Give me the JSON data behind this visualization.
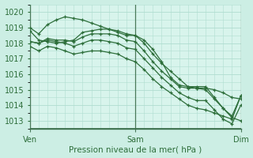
{
  "bg_outer": "#cceee4",
  "bg_plot": "#d8f4ec",
  "grid_color": "#b0ddd0",
  "line_color": "#2d6e3a",
  "vline_color": "#4a7a5a",
  "border_color": "#3a6e4a",
  "marker": "+",
  "xlabel": "Pression niveau de la mer( hPa )",
  "xlim": [
    0,
    48
  ],
  "ylim": [
    1012.5,
    1020.5
  ],
  "yticks": [
    1013,
    1014,
    1015,
    1016,
    1017,
    1018,
    1019,
    1020
  ],
  "xtick_positions": [
    0,
    24,
    48
  ],
  "xtick_labels": [
    "Ven",
    "Sam",
    "Dim"
  ],
  "series": [
    [
      0,
      1018.8,
      2,
      1018.2,
      4,
      1018.1,
      6,
      1018.0,
      8,
      1018.1,
      10,
      1018.2,
      12,
      1018.7,
      14,
      1018.8,
      16,
      1018.9,
      18,
      1018.9,
      20,
      1018.8,
      22,
      1018.6,
      24,
      1018.5,
      26,
      1018.0,
      28,
      1017.3,
      30,
      1016.7,
      32,
      1016.2,
      34,
      1015.7,
      36,
      1015.2,
      38,
      1015.1,
      40,
      1015.1,
      42,
      1015.0,
      44,
      1014.8,
      46,
      1014.5,
      48,
      1014.4
    ],
    [
      0,
      1019.0,
      2,
      1018.6,
      4,
      1019.2,
      6,
      1019.5,
      8,
      1019.7,
      10,
      1019.6,
      12,
      1019.5,
      14,
      1019.3,
      16,
      1019.1,
      18,
      1018.9,
      20,
      1018.7,
      22,
      1018.5,
      24,
      1018.5,
      26,
      1018.2,
      28,
      1017.6,
      30,
      1016.8,
      32,
      1015.8,
      34,
      1015.3,
      36,
      1015.2,
      38,
      1015.2,
      40,
      1015.2,
      42,
      1014.5,
      44,
      1013.8,
      46,
      1013.2,
      48,
      1013.0
    ],
    [
      0,
      1018.1,
      2,
      1018.0,
      4,
      1018.3,
      6,
      1018.2,
      8,
      1018.2,
      10,
      1018.1,
      12,
      1018.4,
      14,
      1018.6,
      16,
      1018.6,
      18,
      1018.6,
      20,
      1018.5,
      22,
      1018.2,
      24,
      1018.1,
      26,
      1017.5,
      28,
      1016.8,
      30,
      1016.2,
      32,
      1015.7,
      34,
      1015.2,
      36,
      1015.1,
      38,
      1015.1,
      40,
      1015.0,
      42,
      1014.4,
      44,
      1013.8,
      46,
      1013.3,
      48,
      1014.6
    ],
    [
      0,
      1017.8,
      2,
      1017.5,
      4,
      1017.8,
      6,
      1017.7,
      8,
      1017.5,
      10,
      1017.3,
      12,
      1017.4,
      14,
      1017.5,
      16,
      1017.5,
      18,
      1017.4,
      20,
      1017.3,
      22,
      1017.0,
      24,
      1016.8,
      26,
      1016.3,
      28,
      1015.7,
      30,
      1015.2,
      32,
      1014.8,
      34,
      1014.4,
      36,
      1014.0,
      38,
      1013.8,
      40,
      1013.7,
      42,
      1013.5,
      44,
      1013.3,
      46,
      1013.1,
      48,
      1014.6
    ],
    [
      0,
      1018.1,
      2,
      1018.0,
      4,
      1018.2,
      6,
      1018.1,
      8,
      1018.0,
      10,
      1017.8,
      12,
      1018.0,
      14,
      1018.2,
      16,
      1018.2,
      18,
      1018.1,
      20,
      1018.0,
      22,
      1017.7,
      24,
      1017.6,
      26,
      1017.0,
      28,
      1016.4,
      30,
      1015.8,
      32,
      1015.3,
      34,
      1014.8,
      36,
      1014.5,
      38,
      1014.3,
      40,
      1014.3,
      42,
      1013.7,
      44,
      1013.1,
      46,
      1012.8,
      48,
      1014.0
    ]
  ],
  "tick_label_fontsize": 7,
  "xlabel_fontsize": 7.5
}
